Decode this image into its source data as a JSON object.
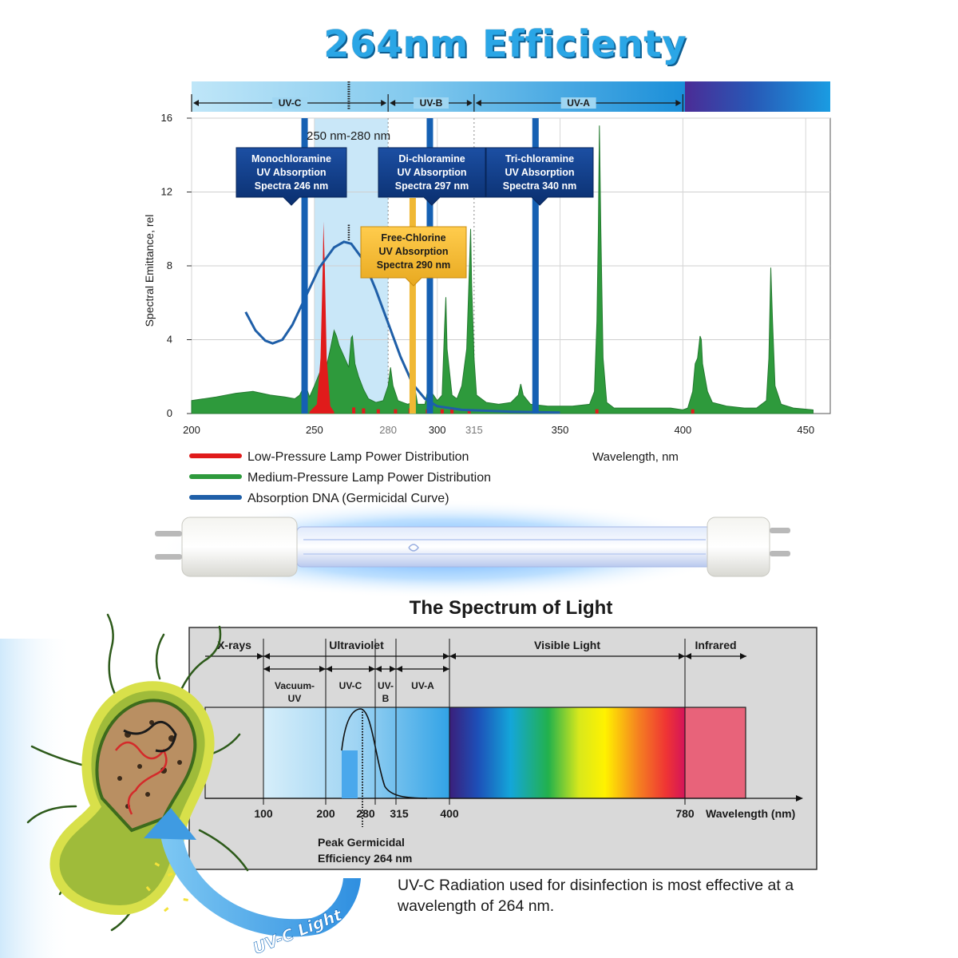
{
  "title": "264nm Efficienty",
  "colors": {
    "title": "#2aa6e6",
    "low_pressure": "#e01b1b",
    "medium_pressure": "#2e9a3c",
    "dna": "#1f5fa8",
    "callout_blue": "#0d3d86",
    "callout_gold": "#f0b834"
  },
  "chart_data": [
    {
      "type": "line",
      "title": "",
      "xlabel": "Wavelength, nm",
      "ylabel": "Spectral Emittance, rel",
      "xlim": [
        200,
        460
      ],
      "ylim": [
        0,
        16
      ],
      "x_ticks": [
        "200",
        "250",
        "280",
        "300",
        "315",
        "350",
        "400",
        "450"
      ],
      "y_ticks": [
        "0",
        "4",
        "8",
        "12",
        "16"
      ],
      "grid": true,
      "bands": [
        {
          "label": "UV-C",
          "from": 200,
          "to": 280
        },
        {
          "label": "UV-B",
          "from": 280,
          "to": 315
        },
        {
          "label": "UV-A",
          "from": 315,
          "to": 400
        }
      ],
      "highlight_range": {
        "label": "250 nm-280 nm",
        "from": 250,
        "to": 280
      },
      "absorption_lines": [
        {
          "label": "Monochloramine UV Absorption Spectra 246 nm",
          "lines": [
            "Monochloramine",
            "UV Absorption",
            "Spectra 246 nm"
          ],
          "nm": 246,
          "style": "blue"
        },
        {
          "label": "Di-chloramine UV Absorption Spectra 297 nm",
          "lines": [
            "Di-chloramine",
            "UV Absorption",
            "Spectra 297 nm"
          ],
          "nm": 297,
          "style": "blue"
        },
        {
          "label": "Tri-chloramine UV Absorption Spectra 340 nm",
          "lines": [
            "Tri-chloramine",
            "UV Absorption",
            "Spectra 340 nm"
          ],
          "nm": 340,
          "style": "blue"
        },
        {
          "label": "Free-Chlorine UV Absorption Spectra 290 nm",
          "lines": [
            "Free-Chlorine",
            "UV Absorption",
            "Spectra 290 nm"
          ],
          "nm": 290,
          "style": "gold"
        }
      ],
      "series": [
        {
          "name": "Low-Pressure Lamp Power Distribution",
          "color": "#e01b1b",
          "points": [
            [
              248,
              0.1
            ],
            [
              251,
              0.5
            ],
            [
              252.5,
              3
            ],
            [
              253.4,
              8
            ],
            [
              253.7,
              10.4
            ],
            [
              254.2,
              8
            ],
            [
              255,
              3
            ],
            [
              256.5,
              0.4
            ],
            [
              258,
              0.1
            ]
          ]
        },
        {
          "name": "Medium-Pressure Lamp Power Distribution",
          "color": "#2e9a3c",
          "points": [
            [
              200,
              0.7
            ],
            [
              210,
              0.9
            ],
            [
              218,
              1.1
            ],
            [
              225,
              1.2
            ],
            [
              232,
              1.0
            ],
            [
              238,
              0.9
            ],
            [
              242,
              0.8
            ],
            [
              244,
              1.0
            ],
            [
              245.5,
              1.4
            ],
            [
              246.3,
              2.2
            ],
            [
              247,
              1.3
            ],
            [
              248,
              0.9
            ],
            [
              250,
              1.5
            ],
            [
              253,
              2.5
            ],
            [
              254,
              2.8
            ],
            [
              255,
              2.6
            ],
            [
              256.5,
              3.5
            ],
            [
              258,
              4.5
            ],
            [
              259,
              4.2
            ],
            [
              260,
              3.7
            ],
            [
              262,
              3.1
            ],
            [
              264,
              2.5
            ],
            [
              265,
              4.1
            ],
            [
              265.5,
              4.2
            ],
            [
              266.5,
              2.7
            ],
            [
              268,
              2.0
            ],
            [
              270,
              1.3
            ],
            [
              272,
              0.8
            ],
            [
              275,
              0.6
            ],
            [
              278,
              0.7
            ],
            [
              280,
              1.5
            ],
            [
              281,
              2.5
            ],
            [
              282,
              1.5
            ],
            [
              284,
              0.7
            ],
            [
              288,
              0.5
            ],
            [
              290,
              0.6
            ],
            [
              291,
              1.3
            ],
            [
              292,
              0.5
            ],
            [
              295,
              0.5
            ],
            [
              296,
              1.2
            ],
            [
              297,
              2.2
            ],
            [
              297.6,
              2.6
            ],
            [
              298,
              1.1
            ],
            [
              300,
              0.7
            ],
            [
              302,
              1.0
            ],
            [
              303,
              4.7
            ],
            [
              303.5,
              6.3
            ],
            [
              304,
              3.5
            ],
            [
              306,
              1.0
            ],
            [
              308,
              0.8
            ],
            [
              310,
              1.5
            ],
            [
              312,
              3.5
            ],
            [
              313,
              7.5
            ],
            [
              313.6,
              10.0
            ],
            [
              314,
              7.0
            ],
            [
              315,
              3.0
            ],
            [
              316,
              1.0
            ],
            [
              320,
              0.6
            ],
            [
              325,
              0.5
            ],
            [
              330,
              0.6
            ],
            [
              333,
              1.0
            ],
            [
              334,
              1.6
            ],
            [
              335,
              1.0
            ],
            [
              338,
              0.5
            ],
            [
              345,
              0.4
            ],
            [
              355,
              0.4
            ],
            [
              362,
              0.5
            ],
            [
              364,
              1.2
            ],
            [
              365,
              5.0
            ],
            [
              365.6,
              10.0
            ],
            [
              366,
              15.6
            ],
            [
              366.6,
              10.0
            ],
            [
              367.5,
              3.0
            ],
            [
              369,
              0.6
            ],
            [
              372,
              0.3
            ],
            [
              385,
              0.3
            ],
            [
              395,
              0.3
            ],
            [
              400,
              0.2
            ],
            [
              402,
              0.3
            ],
            [
              404,
              1.2
            ],
            [
              405,
              2.7
            ],
            [
              406,
              3.0
            ],
            [
              407,
              4.2
            ],
            [
              407.5,
              4.0
            ],
            [
              408,
              2.7
            ],
            [
              410,
              1.2
            ],
            [
              412,
              0.6
            ],
            [
              418,
              0.4
            ],
            [
              425,
              0.3
            ],
            [
              430,
              0.3
            ],
            [
              434,
              0.7
            ],
            [
              435,
              3.0
            ],
            [
              435.8,
              7.9
            ],
            [
              436.5,
              5.0
            ],
            [
              437.5,
              1.5
            ],
            [
              440,
              0.5
            ],
            [
              445,
              0.3
            ],
            [
              453,
              0.2
            ]
          ]
        },
        {
          "name": "Absorption DNA (Germicidal Curve)",
          "color": "#1f5fa8",
          "points": [
            [
              222,
              5.5
            ],
            [
              226,
              4.5
            ],
            [
              230,
              3.95
            ],
            [
              233,
              3.8
            ],
            [
              237,
              4.0
            ],
            [
              241,
              4.8
            ],
            [
              246,
              6.2
            ],
            [
              252,
              7.9
            ],
            [
              258,
              9.0
            ],
            [
              262,
              9.3
            ],
            [
              265,
              9.2
            ],
            [
              270,
              8.3
            ],
            [
              275,
              6.7
            ],
            [
              280,
              4.9
            ],
            [
              285,
              3.1
            ],
            [
              290,
              1.6
            ],
            [
              295,
              0.8
            ],
            [
              300,
              0.4
            ],
            [
              310,
              0.2
            ],
            [
              330,
              0.1
            ],
            [
              350,
              0.05
            ]
          ]
        }
      ]
    },
    {
      "type": "bar",
      "title": "The Spectrum of Light",
      "xlabel": "Wavelength (nm)",
      "x_ticks": [
        "100",
        "200",
        "280",
        "315",
        "400",
        "780"
      ],
      "top_regions": [
        {
          "label": "X-rays",
          "to": 100
        },
        {
          "label": "Ultraviolet",
          "from": 100,
          "to": 400
        },
        {
          "label": "Visible Light",
          "from": 400,
          "to": 780
        },
        {
          "label": "Infrared",
          "from": 780
        }
      ],
      "sub_regions": [
        {
          "label_lines": [
            "Vacuum-",
            "UV"
          ],
          "from": 100,
          "to": 200
        },
        {
          "label_lines": [
            "UV-C"
          ],
          "from": 200,
          "to": 280
        },
        {
          "label_lines": [
            "UV-",
            "B"
          ],
          "from": 280,
          "to": 315
        },
        {
          "label_lines": [
            "UV-A"
          ],
          "from": 315,
          "to": 400
        }
      ],
      "peak": {
        "lines": [
          "Peak Germicidal",
          "Efficiency 264 nm"
        ],
        "nm": 264
      }
    }
  ],
  "spectrum_title": "The Spectrum of Light",
  "uvc_light_label": "UV-C Light",
  "caption": "UV-C Radiation used for disinfection is most effective at a wavelength of 264 nm."
}
